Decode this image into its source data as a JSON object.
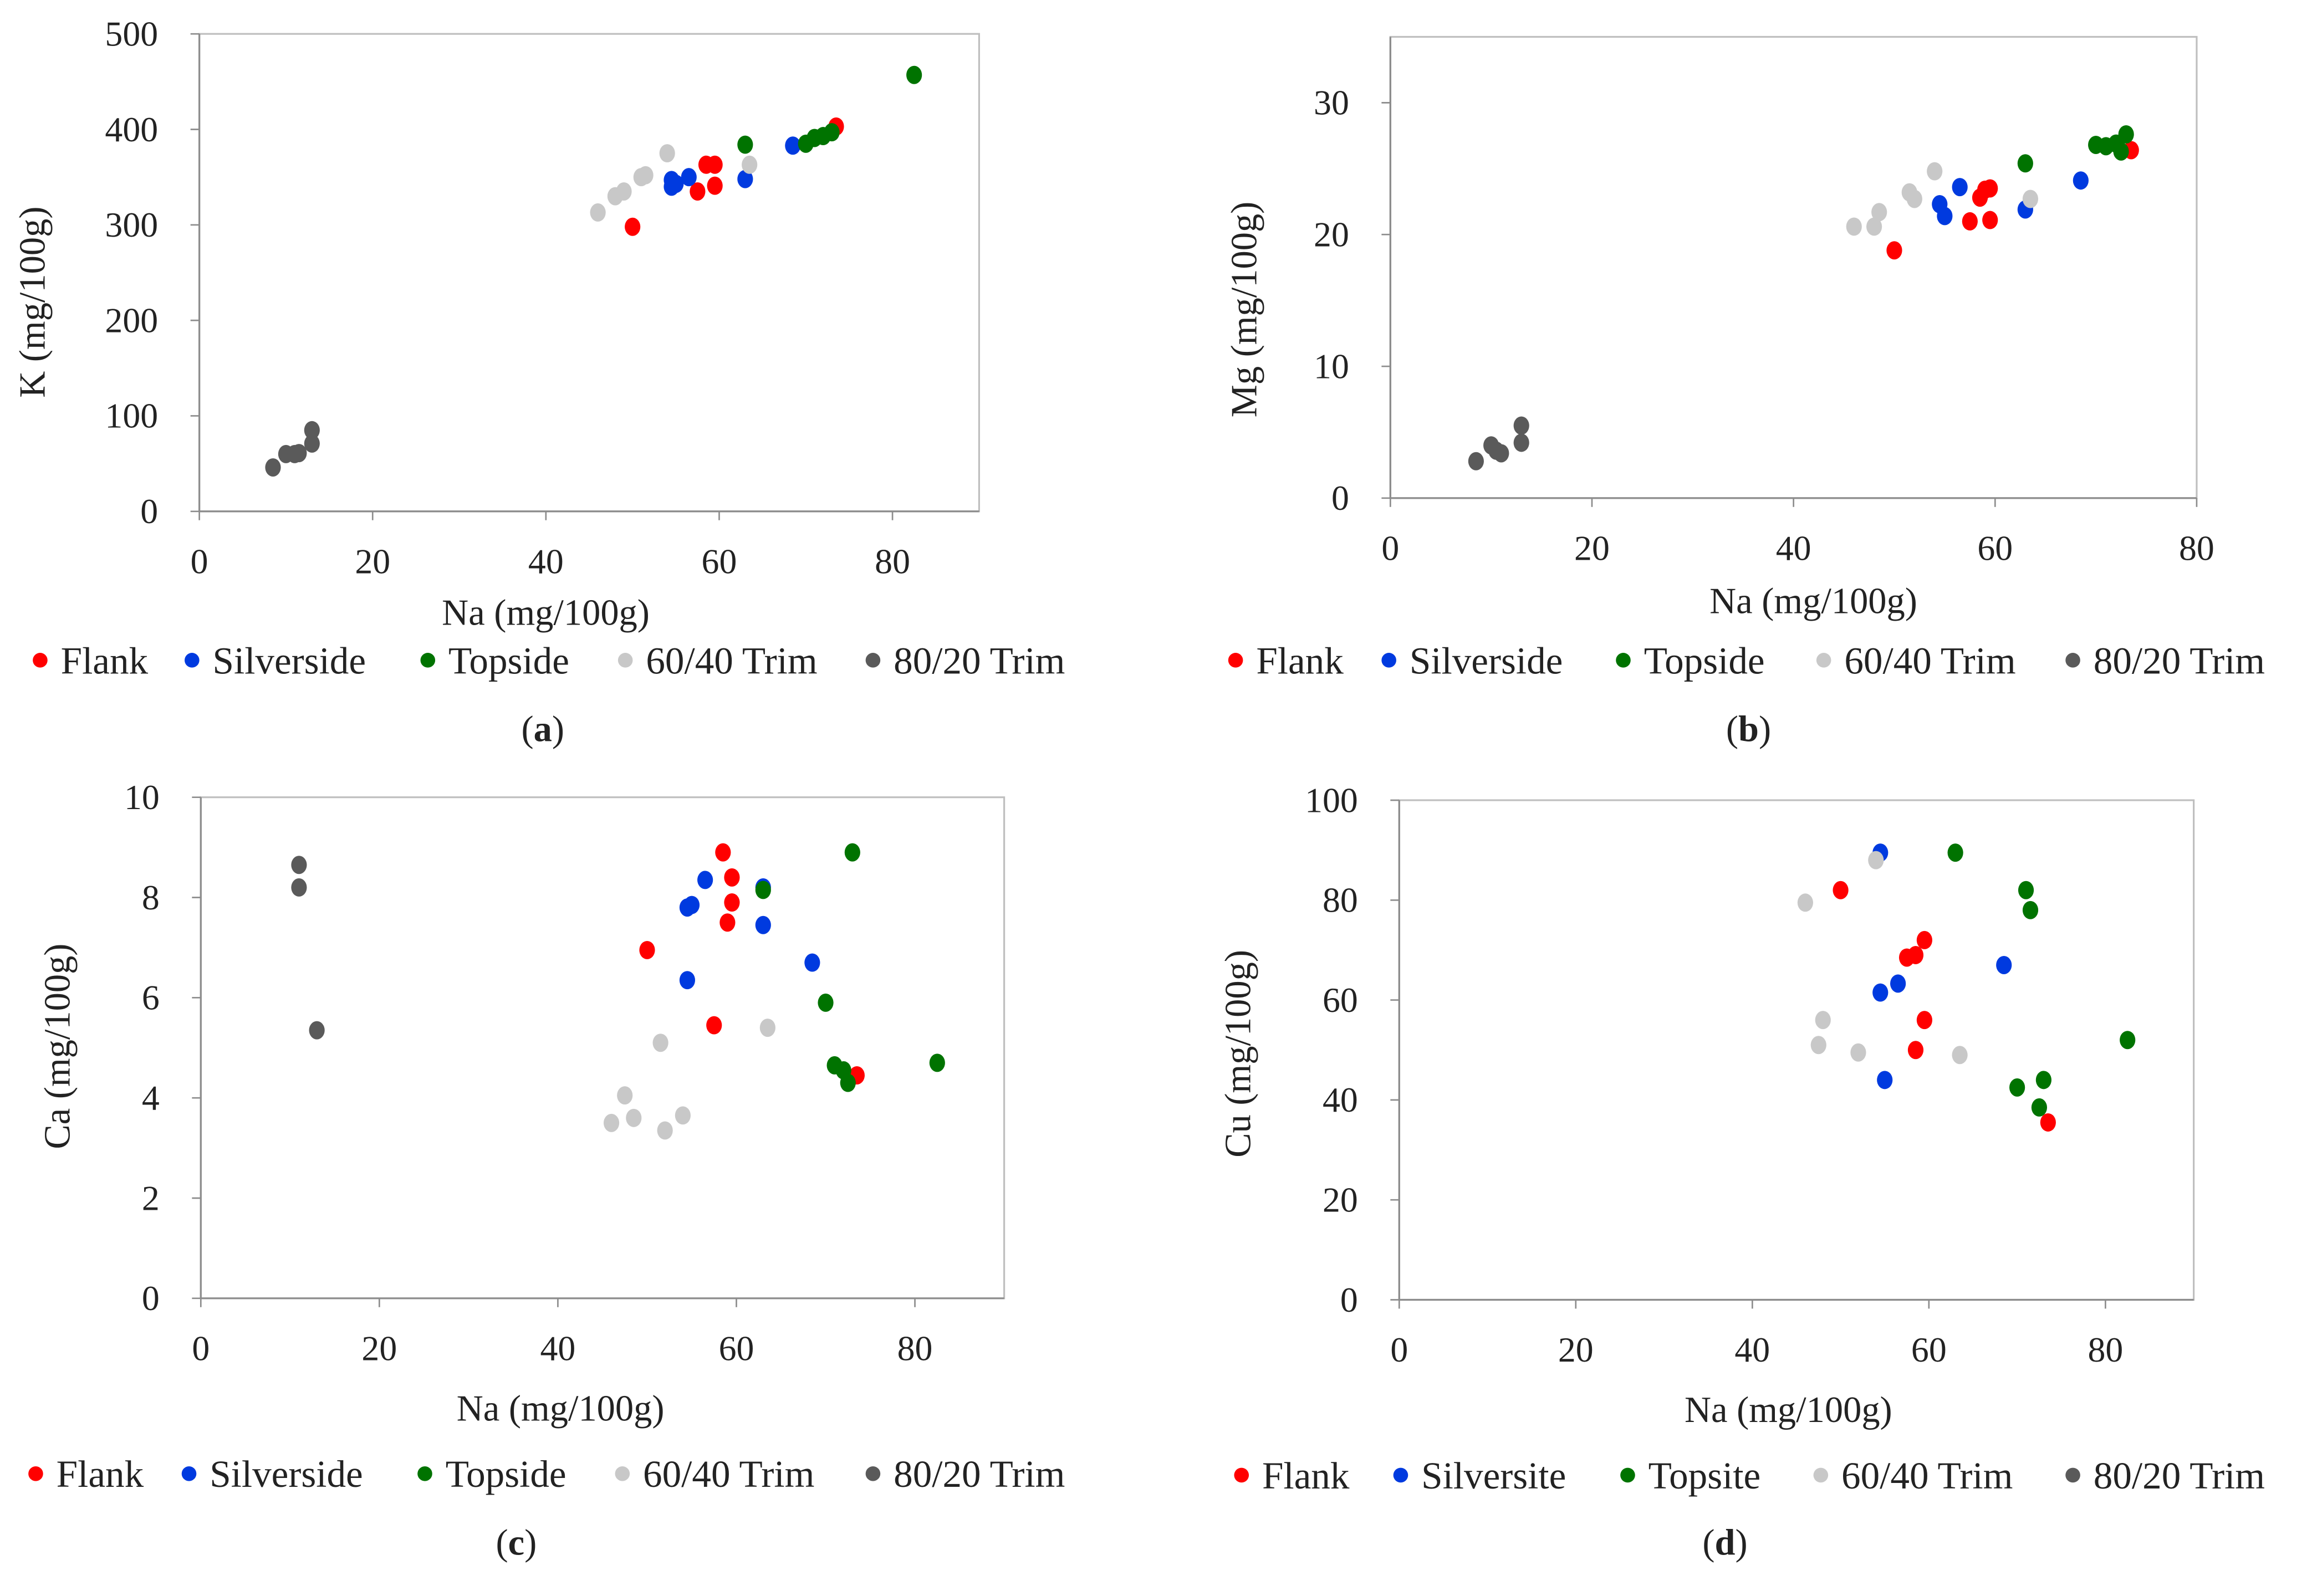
{
  "colors": {
    "Flank": "#ff0000",
    "Silverside": "#003adf",
    "Topside": "#007300",
    "60/40 Trim": "#c8c8c8",
    "80/20 Trim": "#5a5a5a"
  },
  "chart_data": [
    {
      "type": "scatter",
      "caption_letter": "a",
      "caption_open": "(",
      "caption_close": ")",
      "xlabel": "Na (mg/100g)",
      "ylabel": "K (mg/100g)",
      "xlim": [
        0,
        90
      ],
      "ylim": [
        0,
        500
      ],
      "xticks": [
        0,
        20,
        40,
        60,
        80
      ],
      "yticks": [
        0,
        100,
        200,
        300,
        400,
        500
      ],
      "legend": [
        "Flank",
        "Silverside",
        "Topside",
        "60/40 Trim",
        "80/20 Trim"
      ],
      "legend_placement": "bottom",
      "series": [
        {
          "name": "Flank",
          "points": [
            [
              50,
              298
            ],
            [
              57.5,
              335
            ],
            [
              58.5,
              363
            ],
            [
              59.5,
              363
            ],
            [
              59.5,
              341
            ],
            [
              73.5,
              403
            ]
          ]
        },
        {
          "name": "Silverside",
          "points": [
            [
              54.5,
              340
            ],
            [
              54.5,
              347
            ],
            [
              55,
              343
            ],
            [
              56.5,
              350
            ],
            [
              63,
              348
            ],
            [
              68.5,
              383
            ]
          ]
        },
        {
          "name": "Topside",
          "points": [
            [
              63,
              384
            ],
            [
              70,
              385
            ],
            [
              71,
              391
            ],
            [
              72,
              393
            ],
            [
              73,
              397
            ],
            [
              82.5,
              457
            ]
          ]
        },
        {
          "name": "60/40 Trim",
          "points": [
            [
              46,
              313
            ],
            [
              48,
              330
            ],
            [
              49,
              335
            ],
            [
              51,
              350
            ],
            [
              51.5,
              352
            ],
            [
              54,
              375
            ],
            [
              63.5,
              363
            ]
          ]
        },
        {
          "name": "80/20 Trim",
          "points": [
            [
              8.5,
              46
            ],
            [
              10,
              60
            ],
            [
              11,
              60
            ],
            [
              11.5,
              61
            ],
            [
              13,
              71
            ],
            [
              13,
              85
            ]
          ]
        }
      ]
    },
    {
      "type": "scatter",
      "caption_letter": "b",
      "caption_open": "(",
      "caption_close": ")",
      "xlabel": "Na (mg/100g)",
      "ylabel": "Mg (mg/100g)",
      "xlim": [
        0,
        80
      ],
      "ylim": [
        0,
        35
      ],
      "xticks": [
        0,
        20,
        40,
        60,
        80
      ],
      "yticks": [
        0,
        10,
        20,
        30
      ],
      "legend": [
        "Flank",
        "Silverside",
        "Topside",
        "60/40 Trim",
        "80/20 Trim"
      ],
      "legend_placement": "bottom",
      "series": [
        {
          "name": "Flank",
          "points": [
            [
              50,
              18.8
            ],
            [
              57.5,
              21
            ],
            [
              58.5,
              22.8
            ],
            [
              59,
              23.4
            ],
            [
              59.5,
              23.5
            ],
            [
              59.5,
              21.1
            ],
            [
              73.5,
              26.4
            ]
          ]
        },
        {
          "name": "Silverside",
          "points": [
            [
              54.5,
              22.3
            ],
            [
              55,
              21.4
            ],
            [
              56.5,
              23.6
            ],
            [
              63,
              21.9
            ],
            [
              68.5,
              24.1
            ]
          ]
        },
        {
          "name": "Topside",
          "points": [
            [
              63,
              25.4
            ],
            [
              70,
              26.8
            ],
            [
              71,
              26.7
            ],
            [
              72,
              26.9
            ],
            [
              72.5,
              26.3
            ],
            [
              73,
              27.6
            ]
          ]
        },
        {
          "name": "60/40 Trim",
          "points": [
            [
              46,
              20.6
            ],
            [
              48,
              20.6
            ],
            [
              48.5,
              21.7
            ],
            [
              51.5,
              23.2
            ],
            [
              52,
              22.7
            ],
            [
              54,
              24.8
            ],
            [
              63.5,
              22.7
            ]
          ]
        },
        {
          "name": "80/20 Trim",
          "points": [
            [
              8.5,
              2.8
            ],
            [
              10,
              4
            ],
            [
              10.5,
              3.6
            ],
            [
              11,
              3.4
            ],
            [
              13,
              4.2
            ],
            [
              13,
              5.5
            ]
          ]
        }
      ]
    },
    {
      "type": "scatter",
      "caption_letter": "c",
      "caption_open": "(",
      "caption_close": ")",
      "xlabel": "Na (mg/100g)",
      "ylabel": "Ca (mg/100g)",
      "xlim": [
        0,
        90
      ],
      "ylim": [
        0,
        10
      ],
      "xticks": [
        0,
        20,
        40,
        60,
        80
      ],
      "yticks": [
        0,
        2,
        4,
        6,
        8,
        10
      ],
      "legend": [
        "Flank",
        "Silverside",
        "Topside",
        "60/40 Trim",
        "80/20 Trim"
      ],
      "legend_placement": "bottom",
      "series": [
        {
          "name": "Flank",
          "points": [
            [
              50,
              6.95
            ],
            [
              57.5,
              5.45
            ],
            [
              58.5,
              8.9
            ],
            [
              59,
              7.5
            ],
            [
              59.5,
              8.4
            ],
            [
              59.5,
              7.9
            ],
            [
              73.5,
              4.45
            ]
          ]
        },
        {
          "name": "Silverside",
          "points": [
            [
              54.5,
              6.35
            ],
            [
              54.5,
              7.8
            ],
            [
              55,
              7.85
            ],
            [
              56.5,
              8.35
            ],
            [
              63,
              8.2
            ],
            [
              63,
              7.45
            ],
            [
              68.5,
              6.7
            ]
          ]
        },
        {
          "name": "Topside",
          "points": [
            [
              63,
              8.15
            ],
            [
              70,
              5.9
            ],
            [
              71,
              4.65
            ],
            [
              72,
              4.55
            ],
            [
              72.5,
              4.3
            ],
            [
              73,
              8.9
            ],
            [
              82.5,
              4.7
            ]
          ]
        },
        {
          "name": "60/40 Trim",
          "points": [
            [
              46,
              3.5
            ],
            [
              47.5,
              4.05
            ],
            [
              48.5,
              3.6
            ],
            [
              51.5,
              5.1
            ],
            [
              52,
              3.35
            ],
            [
              54,
              3.65
            ],
            [
              63.5,
              5.4
            ]
          ]
        },
        {
          "name": "80/20 Trim",
          "points": [
            [
              11,
              8.65
            ],
            [
              11,
              8.2
            ],
            [
              13,
              5.35
            ]
          ]
        }
      ]
    },
    {
      "type": "scatter",
      "caption_letter": "d",
      "caption_open": "(",
      "caption_close": ")",
      "xlabel": "Na (mg/100g)",
      "ylabel": "Cu (mg/100g)",
      "xlim": [
        0,
        90
      ],
      "ylim": [
        0,
        100
      ],
      "xticks": [
        0,
        20,
        40,
        60,
        80
      ],
      "yticks": [
        0,
        20,
        40,
        60,
        80,
        100
      ],
      "legend": [
        "Flank",
        "Silversite",
        "Topsite",
        "60/40 Trim",
        "80/20 Trim"
      ],
      "legend_placement": "bottom",
      "series": [
        {
          "name": "Flank",
          "points": [
            [
              50,
              82
            ],
            [
              57.5,
              68.5
            ],
            [
              58.5,
              69
            ],
            [
              59.5,
              72
            ],
            [
              59.5,
              56
            ],
            [
              58.5,
              50
            ],
            [
              73.5,
              35.5
            ]
          ]
        },
        {
          "name": "Silverside",
          "points": [
            [
              54.5,
              89.5
            ],
            [
              54.5,
              61.5
            ],
            [
              56.5,
              63.3
            ],
            [
              55,
              44
            ],
            [
              68.5,
              67
            ]
          ]
        },
        {
          "name": "Topside",
          "points": [
            [
              63,
              89.5
            ],
            [
              71,
              82
            ],
            [
              71.5,
              78
            ],
            [
              70,
              42.5
            ],
            [
              72.5,
              38.5
            ],
            [
              73,
              44
            ],
            [
              82.5,
              52
            ]
          ]
        },
        {
          "name": "60/40 Trim",
          "points": [
            [
              46,
              79.5
            ],
            [
              54,
              88
            ],
            [
              48,
              56
            ],
            [
              47.5,
              51
            ],
            [
              52,
              49.5
            ],
            [
              63.5,
              49
            ]
          ]
        },
        {
          "name": "80/20 Trim",
          "points": []
        }
      ]
    }
  ]
}
